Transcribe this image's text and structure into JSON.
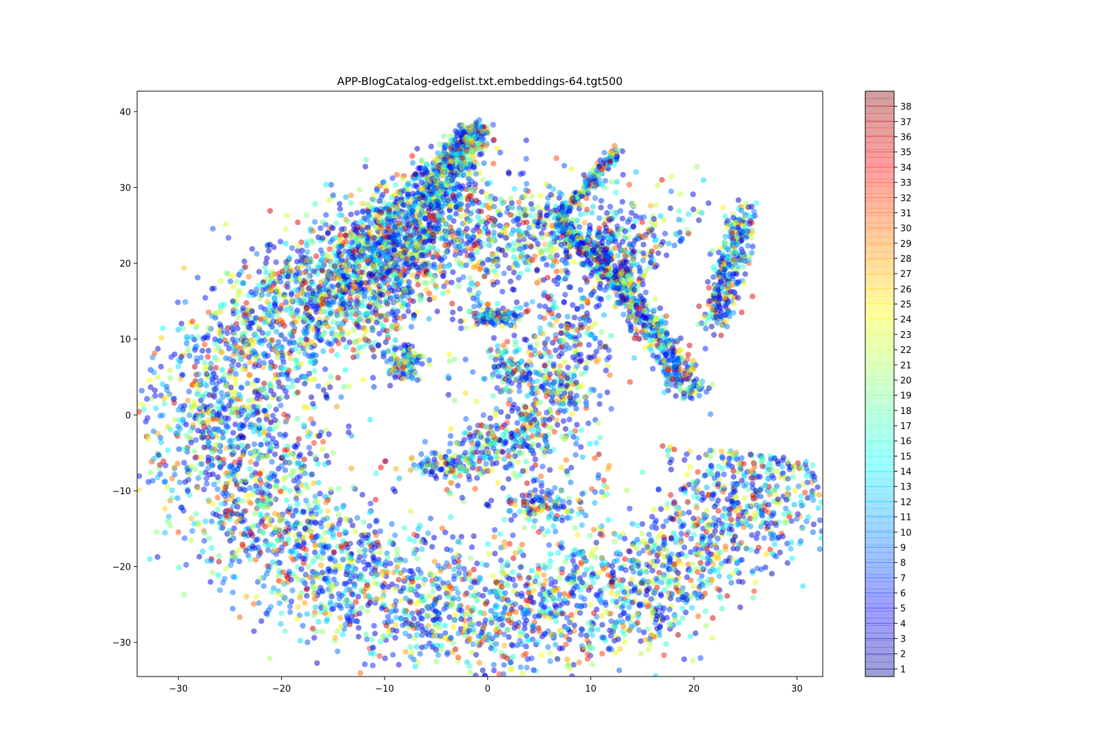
{
  "chart_data": {
    "type": "scatter",
    "title": "APP-BlogCatalog-edgelist.txt.embeddings-64.tgt500",
    "xlabel": "",
    "ylabel": "",
    "xlim": [
      -34,
      32.5
    ],
    "ylim": [
      -34.5,
      42.7
    ],
    "x_ticks": [
      -30,
      -20,
      -10,
      0,
      10,
      20,
      30
    ],
    "y_ticks": [
      -30,
      -20,
      -10,
      0,
      10,
      20,
      30,
      40
    ],
    "x_tick_labels": [
      "−30",
      "−20",
      "−10",
      "0",
      "10",
      "20",
      "30"
    ],
    "y_tick_labels": [
      "−30",
      "−20",
      "−10",
      "0",
      "10",
      "20",
      "30",
      "40"
    ],
    "grid": false,
    "marker_alpha": 0.5,
    "colormap": "jet",
    "colorbar": {
      "min": 0.5,
      "max": 39.0,
      "ticks": [
        1,
        2,
        3,
        4,
        5,
        6,
        7,
        8,
        9,
        10,
        11,
        12,
        13,
        14,
        15,
        16,
        17,
        18,
        19,
        20,
        21,
        22,
        23,
        24,
        25,
        26,
        27,
        28,
        29,
        30,
        31,
        32,
        33,
        34,
        35,
        36,
        37,
        38
      ],
      "tick_labels": [
        "1",
        "2",
        "3",
        "4",
        "5",
        "6",
        "7",
        "8",
        "9",
        "10",
        "11",
        "12",
        "13",
        "14",
        "15",
        "16",
        "17",
        "18",
        "19",
        "20",
        "21",
        "22",
        "23",
        "24",
        "25",
        "26",
        "27",
        "28",
        "29",
        "30",
        "31",
        "32",
        "33",
        "34",
        "35",
        "36",
        "37",
        "38"
      ]
    },
    "clusters": [
      {
        "region": "left-crescent",
        "x_range": [
          -31,
          -8
        ],
        "y_range": [
          -20,
          20
        ],
        "density": "high"
      },
      {
        "region": "upper-left-arm",
        "x_range": [
          -16,
          -1
        ],
        "y_range": [
          10,
          39
        ],
        "density": "high"
      },
      {
        "region": "bottom-arc",
        "x_range": [
          -24,
          24
        ],
        "y_range": [
          -30,
          -10
        ],
        "density": "high"
      },
      {
        "region": "right-arc",
        "x_range": [
          16,
          29.5
        ],
        "y_range": [
          -20,
          25
        ],
        "density": "high"
      },
      {
        "region": "s-curve-strand",
        "x_range": [
          6,
          13
        ],
        "y_range": [
          21,
          35
        ],
        "density": "medium"
      },
      {
        "region": "inner-strand",
        "x_range": [
          8,
          20
        ],
        "y_range": [
          5,
          24
        ],
        "density": "medium"
      },
      {
        "region": "center-islands",
        "x_range": [
          -4,
          10
        ],
        "y_range": [
          -10,
          14
        ],
        "density": "sparse"
      }
    ],
    "point_count": 10312
  }
}
